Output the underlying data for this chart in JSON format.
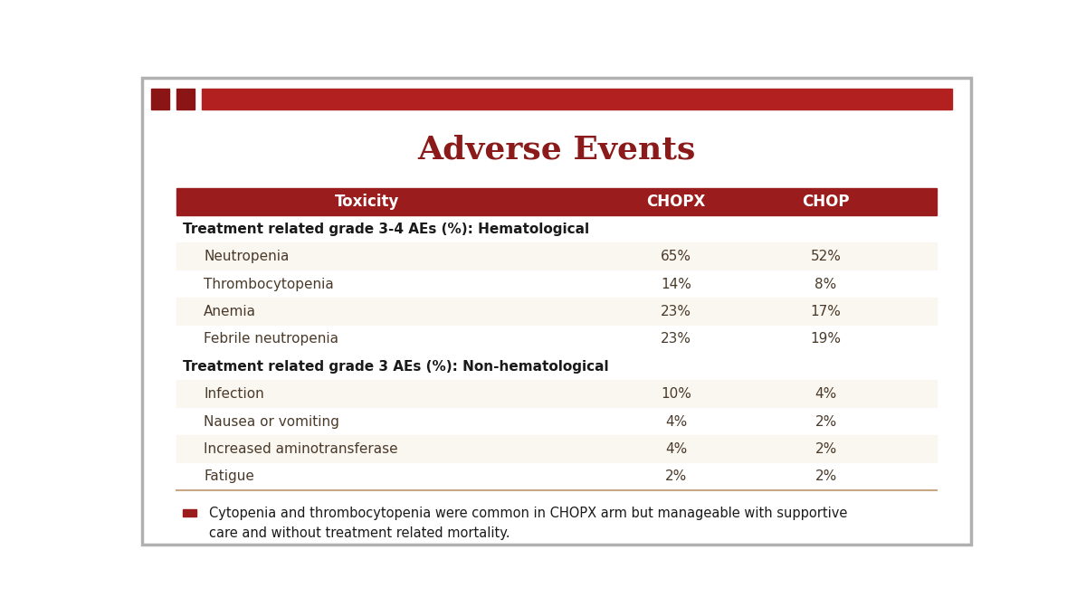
{
  "title": "Adverse Events",
  "title_color": "#8B1A1A",
  "title_fontsize": 26,
  "header_bg_color": "#9B1C1C",
  "header_text_color": "#FFFFFF",
  "header_cols": [
    "Toxicity",
    "CHOPX",
    "CHOP"
  ],
  "section_headers": [
    "Treatment related grade 3-4 AEs (%): Hematological",
    "Treatment related grade 3 AEs (%): Non-hematological"
  ],
  "rows": [
    {
      "section": 0,
      "toxicity": "Neutropenia",
      "chopx": "65%",
      "chop": "52%"
    },
    {
      "section": 0,
      "toxicity": "Thrombocytopenia",
      "chopx": "14%",
      "chop": "8%"
    },
    {
      "section": 0,
      "toxicity": "Anemia",
      "chopx": "23%",
      "chop": "17%"
    },
    {
      "section": 0,
      "toxicity": "Febrile neutropenia",
      "chopx": "23%",
      "chop": "19%"
    },
    {
      "section": 1,
      "toxicity": "Infection",
      "chopx": "10%",
      "chop": "4%"
    },
    {
      "section": 1,
      "toxicity": "Nausea or vomiting",
      "chopx": "4%",
      "chop": "2%"
    },
    {
      "section": 1,
      "toxicity": "Increased aminotransferase",
      "chopx": "4%",
      "chop": "2%"
    },
    {
      "section": 1,
      "toxicity": "Fatigue",
      "chopx": "2%",
      "chop": "2%"
    }
  ],
  "footnote_bullet_color": "#9B1C1C",
  "footnote_line1": "Cytopenia and thrombocytopenia were common in CHOPX arm but manageable with supportive",
  "footnote_line2": "care and without treatment related mortality.",
  "bg_color": "#FFFFFF",
  "table_bg_white": "#FFFFFF",
  "table_bg_cream": "#FAF6F0",
  "section_bg": "#FFFFFF",
  "border_color": "#C8A882",
  "top_bar_color": "#B22020",
  "top_sq_color": "#8B1515",
  "outer_border_color": "#B0B0B0",
  "text_color": "#1A1A1A",
  "data_text_color": "#4A3A2A"
}
